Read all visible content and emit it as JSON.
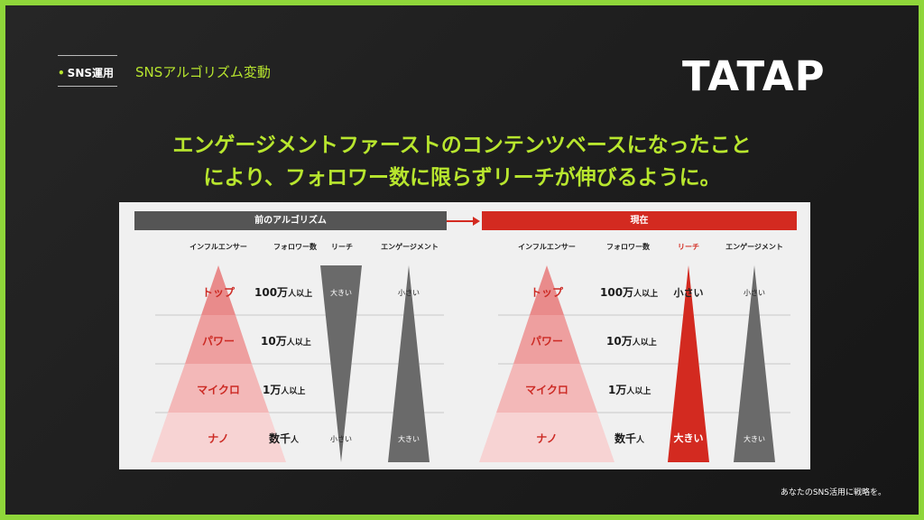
{
  "header": {
    "tag_label": "SNS運用",
    "section_title": "SNSアルゴリズム変動",
    "logo_text": "TATAP"
  },
  "headline": {
    "line1": "エンゲージメントファーストのコンテンツベースになったこと",
    "line2": "により、フォロワー数に限らずリーチが伸びるように。"
  },
  "footer_text": "あなたのSNS活用に戦略を。",
  "colors": {
    "accent": "#b8e62e",
    "frame": "#8fd63a",
    "before_bar": "#555555",
    "current_bar": "#d32a20",
    "pyramid_dark": "#e88a8a",
    "pyramid_light": "#f6d2d2"
  },
  "before": {
    "title": "前のアルゴリズム",
    "col_influencer": "インフルエンサー",
    "col_followers": "フォロワー数",
    "col_reach": "リーチ",
    "col_engagement": "エンゲージメント",
    "levels": [
      {
        "name": "トップ",
        "count": "100万",
        "unit": "人以上"
      },
      {
        "name": "パワー",
        "count": "10万",
        "unit": "人以上"
      },
      {
        "name": "マイクロ",
        "count": "1万",
        "unit": "人以上"
      },
      {
        "name": "ナノ",
        "count": "数千",
        "unit": "人"
      }
    ],
    "reach_top": "大きい",
    "reach_bottom": "小さい",
    "engagement_top": "小さい",
    "engagement_bottom": "大きい"
  },
  "current": {
    "title": "現在",
    "col_influencer": "インフルエンサー",
    "col_followers": "フォロワー数",
    "col_reach": "リーチ",
    "col_engagement": "エンゲージメント",
    "levels": [
      {
        "name": "トップ",
        "count": "100万",
        "unit": "人以上"
      },
      {
        "name": "パワー",
        "count": "10万",
        "unit": "人以上"
      },
      {
        "name": "マイクロ",
        "count": "1万",
        "unit": "人以上"
      },
      {
        "name": "ナノ",
        "count": "数千",
        "unit": "人"
      }
    ],
    "reach_top": "小さい",
    "reach_bottom": "大きい",
    "engagement_top": "小さい",
    "engagement_bottom": "大きい"
  }
}
